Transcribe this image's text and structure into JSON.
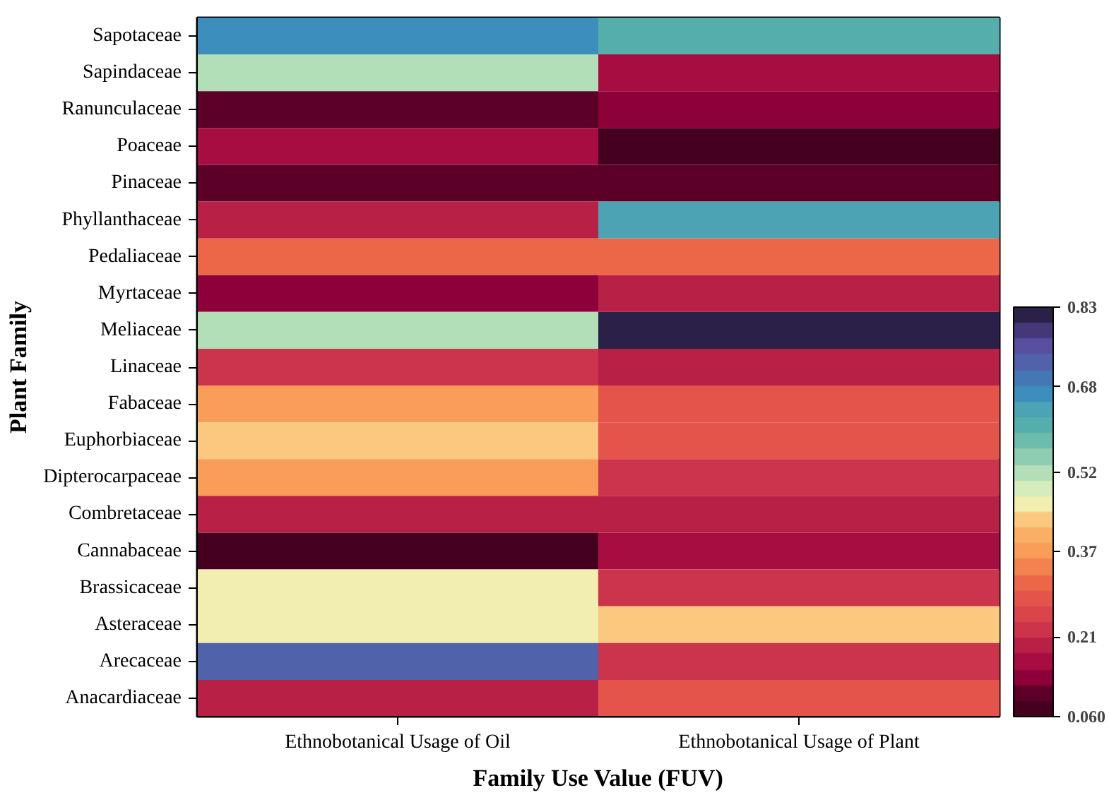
{
  "chart_data": {
    "type": "heatmap",
    "xlabel": "Family Use Value (FUV)",
    "ylabel": "Plant Family",
    "categories": [
      "Ethnobotanical Usage of Oil",
      "Ethnobotanical Usage of Plant"
    ],
    "y_categories": [
      "Sapotaceae",
      "Sapindaceae",
      "Ranunculaceae",
      "Poaceae",
      "Pinaceae",
      "Phyllanthaceae",
      "Pedaliaceae",
      "Myrtaceae",
      "Meliaceae",
      "Linaceae",
      "Fabaceae",
      "Euphorbiaceae",
      "Dipterocarpaceae",
      "Combretaceae",
      "Cannabaceae",
      "Brassicaceae",
      "Asteraceae",
      "Arecaceae",
      "Anacardiaceae"
    ],
    "cells": [
      [
        0.68,
        0.6
      ],
      [
        0.52,
        0.17
      ],
      [
        0.1,
        0.13
      ],
      [
        0.17,
        0.06
      ],
      [
        0.1,
        0.1
      ],
      [
        0.2,
        0.65
      ],
      [
        0.3,
        0.3
      ],
      [
        0.13,
        0.2
      ],
      [
        0.52,
        0.83
      ],
      [
        0.23,
        0.2
      ],
      [
        0.37,
        0.27
      ],
      [
        0.42,
        0.27
      ],
      [
        0.37,
        0.23
      ],
      [
        0.2,
        0.2
      ],
      [
        0.06,
        0.17
      ],
      [
        0.47,
        0.23
      ],
      [
        0.47,
        0.42
      ],
      [
        0.74,
        0.23
      ],
      [
        0.2,
        0.27
      ]
    ],
    "clim": [
      0.06,
      0.83
    ],
    "cticks": [
      {
        "value": 0.06,
        "label": "0.060"
      },
      0.21,
      0.37,
      0.52,
      0.68,
      0.83
    ]
  }
}
